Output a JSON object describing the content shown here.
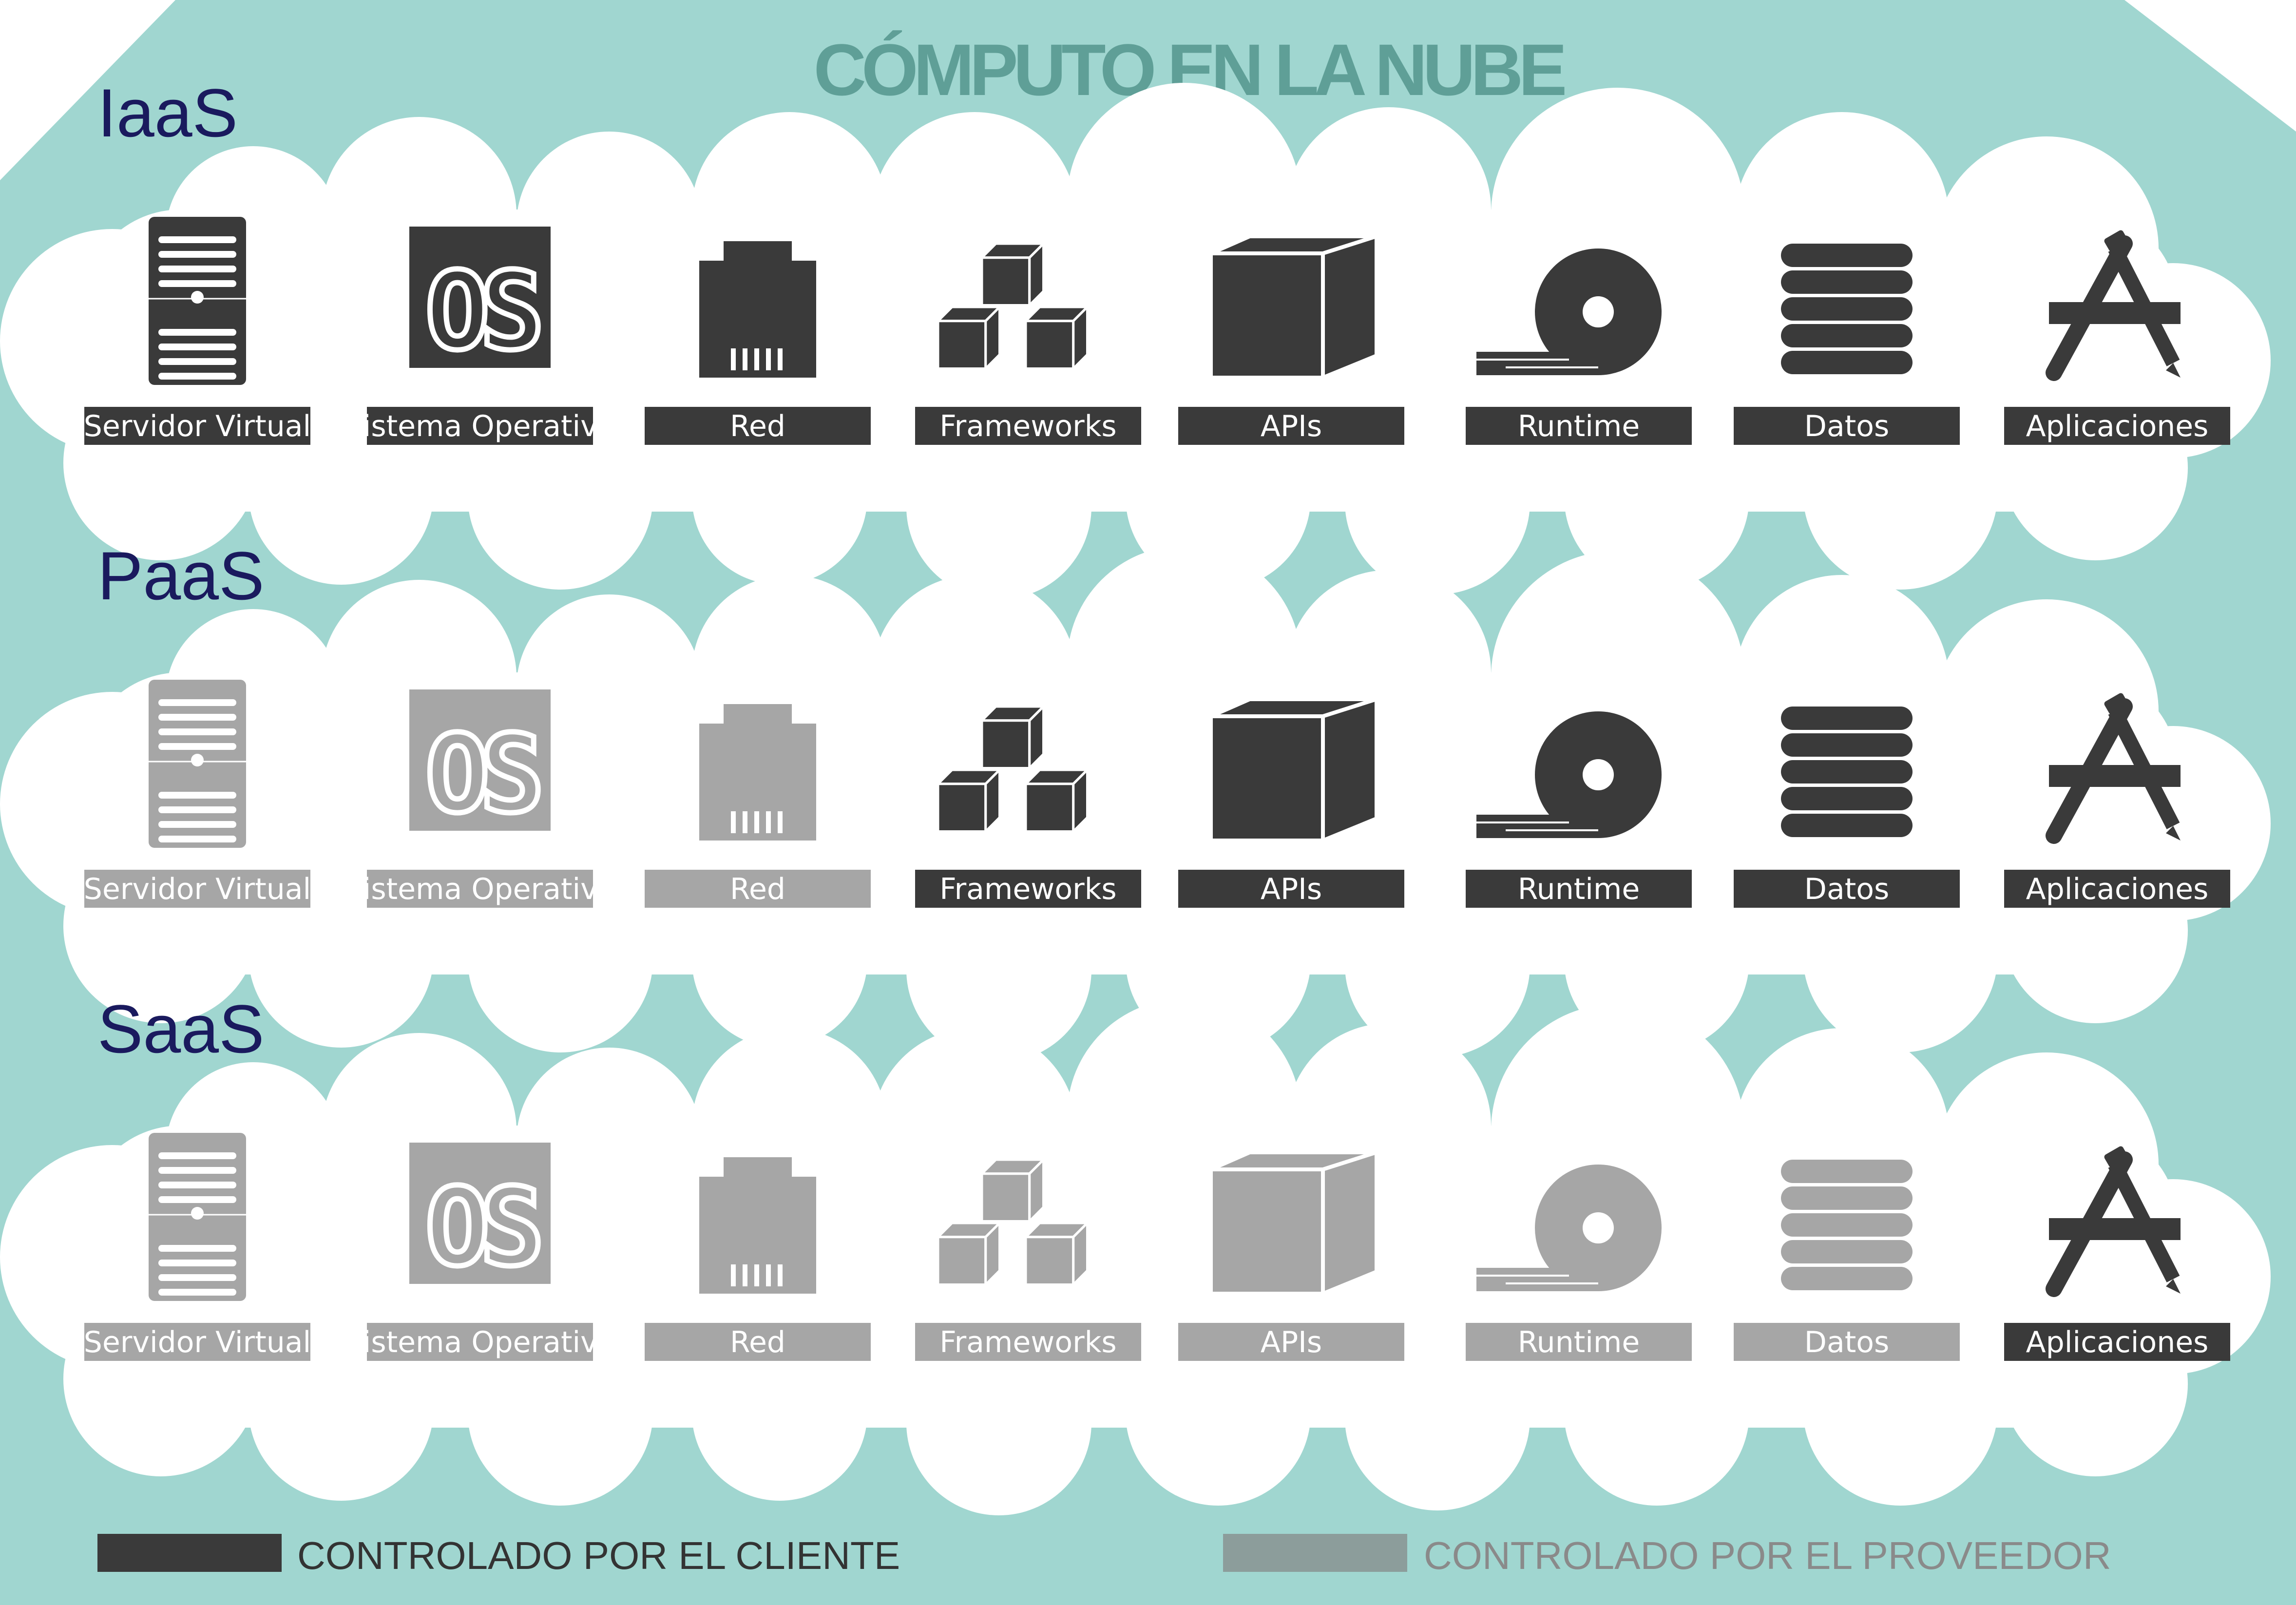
{
  "title": "CÓMPUTO EN LA NUBE",
  "colors": {
    "background": "#a0d6d0",
    "cloud": "#ffffff",
    "client": "#3a3a3a",
    "provider": "#a6a6a6",
    "section_title": "#1a1a5e",
    "title": "#5f9f97"
  },
  "components": [
    {
      "label": "Servidor Virtual",
      "icon": "server-icon"
    },
    {
      "label": "Sistema Operativo",
      "icon": "os-icon"
    },
    {
      "label": "Red",
      "icon": "network-port-icon"
    },
    {
      "label": "Frameworks",
      "icon": "cubes-icon"
    },
    {
      "label": "APIs",
      "icon": "box-icon"
    },
    {
      "label": "Runtime",
      "icon": "reel-icon"
    },
    {
      "label": "Datos",
      "icon": "database-icon"
    },
    {
      "label": "Aplicaciones",
      "icon": "app-store-icon"
    }
  ],
  "models": [
    {
      "name": "IaaS",
      "control": [
        "client",
        "client",
        "client",
        "client",
        "client",
        "client",
        "client",
        "client"
      ]
    },
    {
      "name": "PaaS",
      "control": [
        "provider",
        "provider",
        "provider",
        "client",
        "client",
        "client",
        "client",
        "client"
      ]
    },
    {
      "name": "SaaS",
      "control": [
        "provider",
        "provider",
        "provider",
        "provider",
        "provider",
        "provider",
        "provider",
        "client"
      ]
    }
  ],
  "legend": {
    "client": "CONTROLADO POR EL CLIENTE",
    "provider": "CONTROLADO POR EL PROVEEDOR",
    "provider_text_color": "#8a8a8a"
  }
}
